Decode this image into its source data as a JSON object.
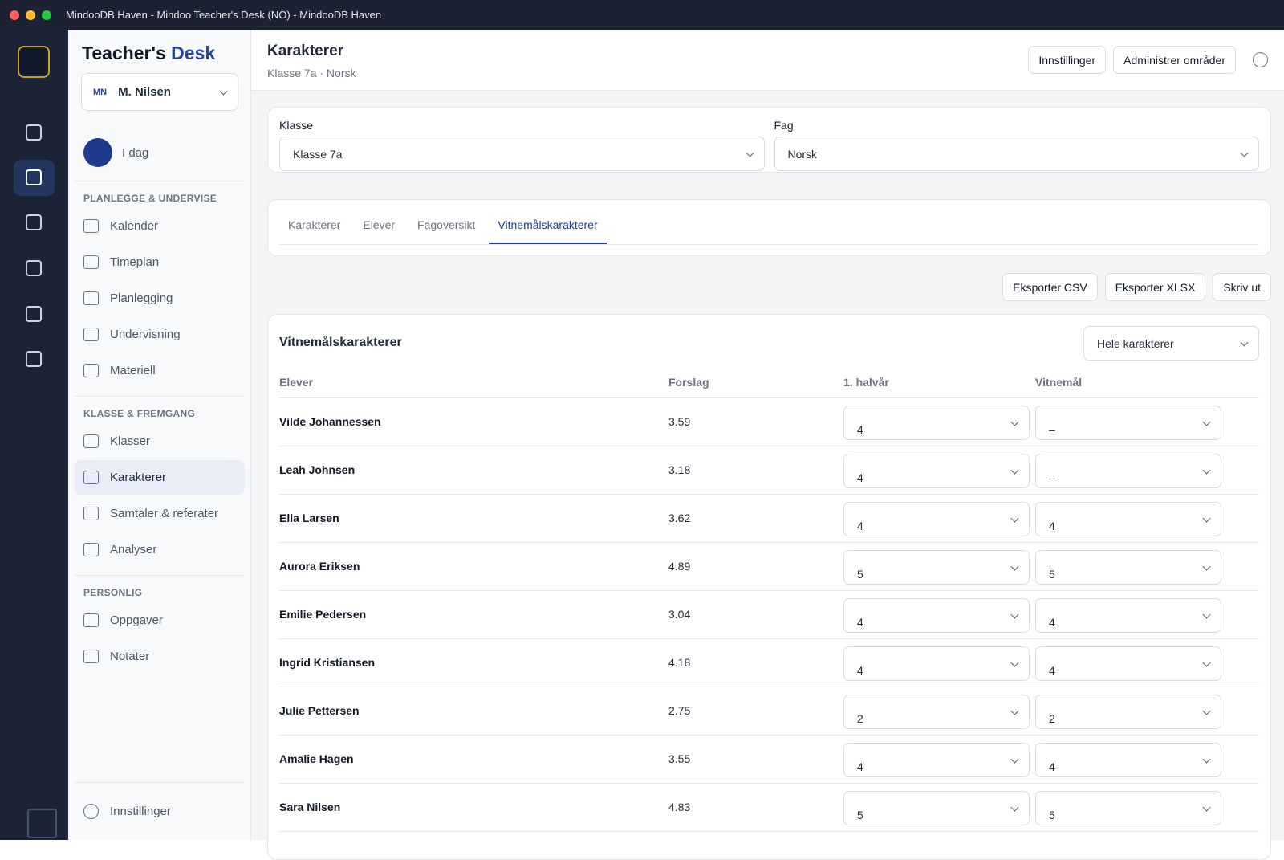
{
  "window": {
    "title": "MindooDB Haven - Mindoo Teacher's Desk (NO) - MindooDB Haven"
  },
  "sidebar": {
    "brand_prefix": "Teacher's",
    "brand_suffix": "Desk",
    "user": {
      "initials": "MN",
      "name": "M. Nilsen"
    },
    "today": "I dag",
    "sections": [
      {
        "heading": "PLANLEGGE & UNDERVISE",
        "items": [
          "Kalender",
          "Timeplan",
          "Planlegging",
          "Undervisning",
          "Materiell"
        ]
      },
      {
        "heading": "KLASSE & FREMGANG",
        "items": [
          "Klasser",
          "Karakterer",
          "Samtaler & referater",
          "Analyser"
        ]
      },
      {
        "heading": "PERSONLIG",
        "items": [
          "Oppgaver",
          "Notater"
        ]
      }
    ],
    "active_item": "Karakterer",
    "settings": "Innstillinger"
  },
  "header": {
    "title": "Karakterer",
    "subtitle": "Klasse 7a · Norsk",
    "buttons": [
      "Innstillinger",
      "Administrer områder"
    ]
  },
  "filters": [
    {
      "label": "Klasse",
      "value": "Klasse 7a"
    },
    {
      "label": "Fag",
      "value": "Norsk"
    }
  ],
  "tabs": {
    "items": [
      "Karakterer",
      "Elever",
      "Fagoversikt",
      "Vitnemålskarakterer"
    ],
    "active": 3
  },
  "actions": [
    "Eksporter CSV",
    "Eksporter XLSX",
    "Skriv ut"
  ],
  "table": {
    "title": "Vitnemålskarakterer",
    "mode": "Hele karakterer",
    "columns": [
      "Elever",
      "Forslag",
      "1. halvår",
      "Vitnemål"
    ],
    "rows": [
      [
        "Vilde Johannessen",
        3.59,
        4,
        "–"
      ],
      [
        "Leah Johnsen",
        3.18,
        4,
        "–"
      ],
      [
        "Ella Larsen",
        3.62,
        4,
        4
      ],
      [
        "Aurora Eriksen",
        4.89,
        5,
        5
      ],
      [
        "Emilie Pedersen",
        3.04,
        4,
        4
      ],
      [
        "Ingrid Kristiansen",
        4.18,
        4,
        4
      ],
      [
        "Julie Pettersen",
        2.75,
        2,
        2
      ],
      [
        "Amalie Hagen",
        3.55,
        4,
        4
      ],
      [
        "Sara Nilsen",
        4.83,
        5,
        5
      ]
    ]
  }
}
